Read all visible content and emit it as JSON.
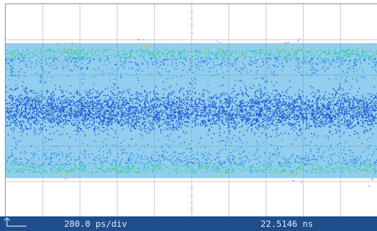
{
  "display": {
    "horizontal_divisions": 10,
    "vertical_divisions": 6,
    "grid_color": "#c9c9c9",
    "background_color": "#ffffff",
    "signal": "eye-diagram",
    "persistence_colors": [
      "#1f5cd6",
      "#2d8fe0",
      "#27c4c4",
      "#3fd27a",
      "#c7d84a",
      "#e8b04a",
      "#e05ad6",
      "#b57cff"
    ]
  },
  "status_bar": {
    "time_scale": "280.0 ps/div",
    "time_position": "22.5146 ns",
    "background_color": "#1f4e8c",
    "trigger_marker_icon": "trigger-marker-icon"
  }
}
